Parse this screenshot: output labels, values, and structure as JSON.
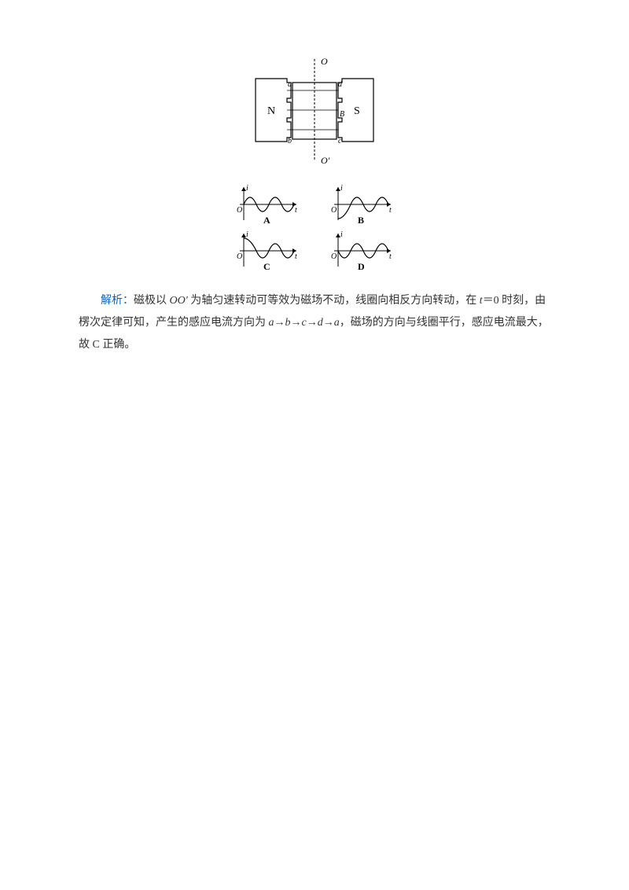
{
  "diagram_main": {
    "labels": {
      "N": "N",
      "S": "S",
      "O_top": "O",
      "O_bottom": "O′",
      "a": "a",
      "b": "b",
      "c": "c",
      "d": "d",
      "B": "B"
    },
    "colors": {
      "stroke": "#000000",
      "text": "#000000",
      "bg": "#ffffff"
    }
  },
  "wave_options": {
    "labels": [
      "A",
      "B",
      "C",
      "D"
    ],
    "axis_i": "i",
    "axis_t": "t",
    "origin": "O",
    "colors": {
      "stroke": "#000000",
      "text": "#000000"
    },
    "waves": {
      "A": {
        "phase": "sin_pos"
      },
      "B": {
        "phase": "neg_cos"
      },
      "C": {
        "phase": "cos_pos"
      },
      "D": {
        "phase": "sin_neg"
      }
    }
  },
  "explanation": {
    "label": "解析：",
    "text_parts": [
      "磁极以 ",
      {
        "italic": "OO′"
      },
      " 为轴匀速转动可等效为磁场不动，线圈向相反方向转动，在 ",
      {
        "italic": "t"
      },
      "＝0 时刻，由楞次定律可知，产生的感应电流方向为 ",
      {
        "italic": "a"
      },
      "→",
      {
        "italic": "b"
      },
      "→",
      {
        "italic": "c"
      },
      "→",
      {
        "italic": "d"
      },
      "→",
      {
        "italic": "a"
      },
      "，磁场的方向与线圈平行，感应电流最大，故 C 正确。"
    ]
  }
}
